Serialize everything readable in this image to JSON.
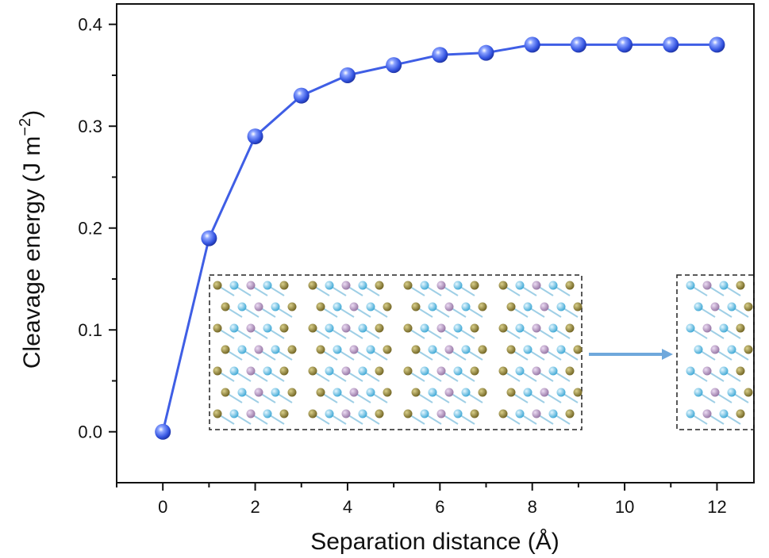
{
  "chart_data": {
    "type": "scatter",
    "xlabel": "Separation distance (Å)",
    "ylabel_main": "Cleavage energy (J m",
    "ylabel_sup": "−2",
    "ylabel_end": ")",
    "xlim": [
      -1,
      12.8
    ],
    "ylim": [
      -0.05,
      0.42
    ],
    "xticks": [
      0,
      2,
      4,
      6,
      8,
      10,
      12
    ],
    "xticks_minor": [
      -1,
      1,
      3,
      5,
      7,
      9,
      11
    ],
    "yticks": [
      0.0,
      0.1,
      0.2,
      0.3,
      0.4
    ],
    "ytick_labels": [
      "0.0",
      "0.1",
      "0.2",
      "0.3",
      "0.4"
    ],
    "grid": false,
    "series": [
      {
        "marker": "sphere",
        "line": "connected",
        "color": "#3f5ee5",
        "x": [
          0,
          1,
          2,
          3,
          4,
          5,
          6,
          7,
          8,
          9,
          10,
          11,
          12
        ],
        "y": [
          0.0,
          0.19,
          0.29,
          0.33,
          0.35,
          0.36,
          0.37,
          0.372,
          0.38,
          0.38,
          0.38,
          0.38,
          0.38
        ]
      }
    ],
    "inset": {
      "description_free": true,
      "colors": {
        "olive": "#8c7d2a",
        "lilac": "#b592c2",
        "cyan": "#64c7ec",
        "arrow": "#6fa8dc"
      }
    }
  }
}
